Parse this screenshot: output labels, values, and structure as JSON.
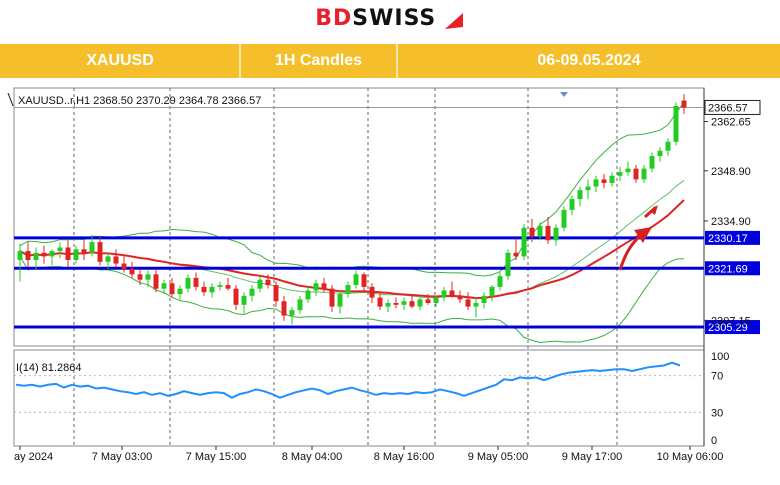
{
  "brand": {
    "logo_text_bd": "BD",
    "logo_text_swiss": "SWISS"
  },
  "header": {
    "symbol": "XAUUSD",
    "timeframe": "1H Candles",
    "dates": "06-09.05.2024"
  },
  "ohlc_line": "XAUUSD..r,H1  2368.50 2370.29 2364.78 2366.57",
  "indicator_label": "I(14) 81.2864",
  "colors": {
    "header_bg": "#f5bf2b",
    "bull": "#22cc22",
    "bear": "#e02424",
    "ma": "#e02424",
    "band": "#3cb043",
    "level": "#0000dd",
    "rsi": "#1e90ff"
  },
  "chart_data": {
    "type": "candlestick",
    "ylim": [
      2300,
      2372
    ],
    "price_ticks": [
      "2362.65",
      "2348.90",
      "2334.90",
      "2307.15"
    ],
    "current_price": "2366.57",
    "levels": [
      {
        "label": "2330.17",
        "value": 2330.17
      },
      {
        "label": "2321.69",
        "value": 2321.69
      },
      {
        "label": "2305.29",
        "value": 2305.29
      }
    ],
    "x_labels": [
      "ay 2024",
      "7 May 03:00",
      "7 May 15:00",
      "8 May 04:00",
      "8 May 16:00",
      "9 May 05:00",
      "9 May 17:00",
      "10 May 06:00"
    ],
    "rsi_ticks": [
      "70",
      "30",
      "0"
    ],
    "rsi_top_label": "100",
    "candles": [
      [
        2324.0,
        2328.5,
        2318.0,
        2326.5
      ],
      [
        2326.5,
        2329.0,
        2322.0,
        2324.0
      ],
      [
        2324.0,
        2327.5,
        2321.5,
        2326.0
      ],
      [
        2326.0,
        2328.0,
        2323.0,
        2325.0
      ],
      [
        2325.0,
        2327.0,
        2322.5,
        2326.5
      ],
      [
        2326.5,
        2329.0,
        2324.5,
        2327.5
      ],
      [
        2327.5,
        2329.5,
        2322.0,
        2324.0
      ],
      [
        2324.0,
        2328.0,
        2323.0,
        2327.0
      ],
      [
        2327.0,
        2329.5,
        2324.0,
        2326.0
      ],
      [
        2326.0,
        2331.0,
        2325.0,
        2329.0
      ],
      [
        2329.0,
        2330.5,
        2322.5,
        2323.5
      ],
      [
        2323.5,
        2326.0,
        2321.5,
        2325.0
      ],
      [
        2325.0,
        2327.0,
        2322.0,
        2323.0
      ],
      [
        2323.0,
        2325.0,
        2320.5,
        2321.5
      ],
      [
        2321.5,
        2323.5,
        2319.0,
        2320.0
      ],
      [
        2320.0,
        2321.5,
        2317.0,
        2318.5
      ],
      [
        2318.5,
        2321.0,
        2316.5,
        2320.0
      ],
      [
        2320.0,
        2321.5,
        2315.0,
        2316.0
      ],
      [
        2316.0,
        2318.5,
        2314.5,
        2317.5
      ],
      [
        2317.5,
        2319.0,
        2313.5,
        2314.5
      ],
      [
        2314.5,
        2317.0,
        2313.0,
        2316.0
      ],
      [
        2316.0,
        2320.0,
        2315.0,
        2319.0
      ],
      [
        2319.0,
        2320.5,
        2315.5,
        2316.5
      ],
      [
        2316.5,
        2318.0,
        2314.0,
        2315.0
      ],
      [
        2315.0,
        2317.5,
        2313.5,
        2316.5
      ],
      [
        2316.5,
        2318.0,
        2315.5,
        2317.0
      ],
      [
        2317.0,
        2319.0,
        2315.5,
        2316.0
      ],
      [
        2316.0,
        2317.0,
        2310.0,
        2311.5
      ],
      [
        2311.5,
        2315.0,
        2309.0,
        2314.0
      ],
      [
        2314.0,
        2317.0,
        2312.5,
        2316.0
      ],
      [
        2316.0,
        2319.5,
        2315.0,
        2318.5
      ],
      [
        2318.5,
        2320.0,
        2316.0,
        2317.0
      ],
      [
        2317.0,
        2318.0,
        2311.0,
        2312.5
      ],
      [
        2312.5,
        2314.0,
        2307.0,
        2308.5
      ],
      [
        2308.5,
        2311.0,
        2306.0,
        2310.0
      ],
      [
        2310.0,
        2314.0,
        2309.0,
        2313.0
      ],
      [
        2313.0,
        2316.5,
        2312.0,
        2315.5
      ],
      [
        2315.5,
        2318.5,
        2314.0,
        2317.5
      ],
      [
        2317.5,
        2319.0,
        2315.0,
        2316.0
      ],
      [
        2316.0,
        2317.0,
        2309.5,
        2311.0
      ],
      [
        2311.0,
        2315.5,
        2309.0,
        2314.5
      ],
      [
        2314.5,
        2318.0,
        2313.5,
        2317.0
      ],
      [
        2317.0,
        2321.0,
        2316.0,
        2320.0
      ],
      [
        2320.0,
        2320.5,
        2315.5,
        2316.5
      ],
      [
        2316.5,
        2317.5,
        2312.0,
        2313.5
      ],
      [
        2313.5,
        2315.0,
        2310.0,
        2311.0
      ],
      [
        2311.0,
        2313.0,
        2309.5,
        2312.0
      ],
      [
        2312.0,
        2313.5,
        2310.5,
        2311.5
      ],
      [
        2311.5,
        2313.5,
        2310.0,
        2312.5
      ],
      [
        2312.5,
        2314.0,
        2310.5,
        2311.0
      ],
      [
        2311.0,
        2313.5,
        2310.0,
        2313.0
      ],
      [
        2313.0,
        2314.5,
        2311.5,
        2312.0
      ],
      [
        2312.0,
        2314.0,
        2311.0,
        2313.5
      ],
      [
        2313.5,
        2316.5,
        2312.5,
        2315.5
      ],
      [
        2315.5,
        2318.0,
        2313.5,
        2314.0
      ],
      [
        2314.0,
        2315.5,
        2312.0,
        2313.0
      ],
      [
        2313.0,
        2315.0,
        2310.0,
        2311.0
      ],
      [
        2311.0,
        2313.5,
        2308.0,
        2312.0
      ],
      [
        2312.0,
        2315.0,
        2310.5,
        2314.0
      ],
      [
        2314.0,
        2317.0,
        2312.5,
        2316.5
      ],
      [
        2316.5,
        2320.5,
        2315.5,
        2319.5
      ],
      [
        2319.5,
        2327.0,
        2318.5,
        2326.0
      ],
      [
        2326.0,
        2330.0,
        2324.0,
        2325.0
      ],
      [
        2325.0,
        2334.0,
        2324.0,
        2333.0
      ],
      [
        2333.0,
        2335.5,
        2329.0,
        2330.5
      ],
      [
        2330.5,
        2334.5,
        2329.5,
        2333.5
      ],
      [
        2333.5,
        2336.0,
        2328.5,
        2329.5
      ],
      [
        2329.5,
        2334.0,
        2328.0,
        2333.0
      ],
      [
        2333.0,
        2339.0,
        2332.0,
        2338.0
      ],
      [
        2338.0,
        2342.0,
        2336.5,
        2341.0
      ],
      [
        2341.0,
        2344.5,
        2339.0,
        2343.5
      ],
      [
        2343.5,
        2346.5,
        2341.0,
        2344.5
      ],
      [
        2344.5,
        2347.5,
        2343.0,
        2346.5
      ],
      [
        2346.5,
        2348.0,
        2344.0,
        2345.5
      ],
      [
        2345.5,
        2348.5,
        2344.5,
        2347.5
      ],
      [
        2347.5,
        2350.0,
        2346.0,
        2348.5
      ],
      [
        2348.5,
        2351.5,
        2347.5,
        2349.5
      ],
      [
        2349.5,
        2350.5,
        2345.5,
        2346.5
      ],
      [
        2346.5,
        2350.5,
        2345.5,
        2349.5
      ],
      [
        2349.5,
        2354.0,
        2348.5,
        2353.0
      ],
      [
        2353.0,
        2355.5,
        2351.5,
        2354.5
      ],
      [
        2354.5,
        2358.0,
        2353.0,
        2357.0
      ],
      [
        2357.0,
        2368.0,
        2356.0,
        2367.0
      ],
      [
        2368.5,
        2370.29,
        2364.78,
        2366.57
      ]
    ],
    "rsi_values": [
      60,
      59,
      60,
      58,
      60,
      61,
      57,
      60,
      58,
      59,
      56,
      57,
      55,
      53,
      52,
      50,
      52,
      49,
      51,
      48,
      50,
      53,
      51,
      49,
      51,
      52,
      51,
      46,
      50,
      52,
      55,
      53,
      50,
      46,
      49,
      52,
      54,
      56,
      54,
      50,
      53,
      55,
      57,
      54,
      52,
      49,
      51,
      50,
      51,
      50,
      52,
      51,
      52,
      55,
      53,
      51,
      48,
      51,
      54,
      57,
      60,
      66,
      65,
      68,
      67,
      68,
      65,
      68,
      71,
      73,
      74,
      75,
      76,
      75,
      76,
      77,
      77,
      75,
      77,
      79,
      80,
      81,
      84,
      81
    ]
  }
}
